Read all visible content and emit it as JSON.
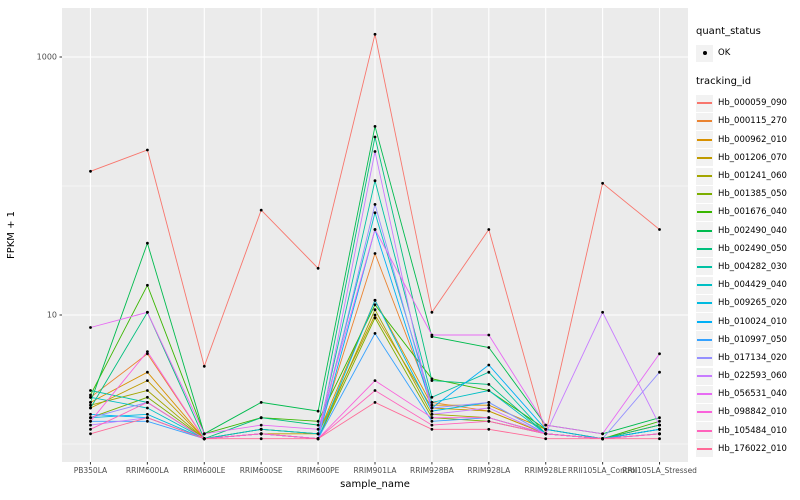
{
  "chart_data": {
    "type": "line",
    "title": "",
    "xlabel": "sample_name",
    "ylabel": "FPKM + 1",
    "yscale": "log10",
    "grid": true,
    "panel_bg": "#EBEBEB",
    "grid_color": "#FFFFFF",
    "point_color": "#000000",
    "y_tick_values": [
      10,
      1000
    ],
    "y_tick_labels": [
      "10",
      "1000"
    ],
    "y_minor_values": [
      1,
      100
    ],
    "ylim": [
      0.72,
      2300
    ],
    "categories": [
      "PB350LA",
      "RRIM600LA",
      "RRIM600LE",
      "RRIM600SE",
      "RRIM600PE",
      "RRIM901LA",
      "RRIM928BA",
      "RRIM928LA",
      "RRIM928LE",
      "RRII105LA_Control",
      "RRII105LA_Stressed"
    ],
    "series": [
      {
        "name": "Hb_000059_090",
        "color": "#F8766D",
        "values": [
          130,
          190,
          4,
          65,
          23,
          1500,
          10.5,
          46,
          1.2,
          105,
          46
        ]
      },
      {
        "name": "Hb_000115_270",
        "color": "#EA8331",
        "values": [
          2.3,
          5,
          1.1,
          1.3,
          1.2,
          30,
          2.1,
          1.8,
          1.2,
          1.1,
          1.4
        ]
      },
      {
        "name": "Hb_000962_010",
        "color": "#D89000",
        "values": [
          2.1,
          3.6,
          1.1,
          1.3,
          1.2,
          13,
          2,
          2,
          1.3,
          1.1,
          1.4
        ]
      },
      {
        "name": "Hb_001206_070",
        "color": "#C09B00",
        "values": [
          1.9,
          3.1,
          1.1,
          1.2,
          1.2,
          10,
          1.9,
          1.8,
          1.2,
          1.1,
          1.3
        ]
      },
      {
        "name": "Hb_001241_060",
        "color": "#A3A500",
        "values": [
          2,
          2.6,
          1.1,
          1.2,
          1.1,
          11,
          1.7,
          1.6,
          1.2,
          1.1,
          1.3
        ]
      },
      {
        "name": "Hb_001385_050",
        "color": "#7CAE00",
        "values": [
          1.6,
          2.3,
          1.1,
          1.2,
          1.1,
          9.5,
          1.6,
          1.5,
          1.2,
          1.1,
          1.2
        ]
      },
      {
        "name": "Hb_001676_040",
        "color": "#39B600",
        "values": [
          2.4,
          17,
          1.2,
          1.6,
          1.5,
          12,
          3.2,
          2.6,
          1.3,
          1.1,
          1.5
        ]
      },
      {
        "name": "Hb_002490_040",
        "color": "#00BB4E",
        "values": [
          2.1,
          36,
          1.2,
          2.1,
          1.8,
          290,
          6.8,
          5.6,
          1.4,
          1.2,
          1.6
        ]
      },
      {
        "name": "Hb_002490_050",
        "color": "#00BF7D",
        "values": [
          1.9,
          10.5,
          1.1,
          1.6,
          1.4,
          240,
          3.1,
          2.9,
          1.2,
          1.1,
          1.4
        ]
      },
      {
        "name": "Hb_004282_030",
        "color": "#00C1A3",
        "values": [
          2.6,
          2.1,
          1.1,
          1.3,
          1.2,
          110,
          2.3,
          3.6,
          1.2,
          1.1,
          1.3
        ]
      },
      {
        "name": "Hb_004429_040",
        "color": "#00BFC4",
        "values": [
          2.3,
          1.9,
          1.1,
          1.3,
          1.2,
          62,
          2.1,
          2.6,
          1.2,
          1.1,
          1.3
        ]
      },
      {
        "name": "Hb_009265_020",
        "color": "#00BAE0",
        "values": [
          1.6,
          1.7,
          1.1,
          1.2,
          1.1,
          13,
          1.8,
          2.1,
          1.2,
          1.1,
          1.2
        ]
      },
      {
        "name": "Hb_010024_010",
        "color": "#00B0F6",
        "values": [
          1.7,
          1.6,
          1.1,
          1.2,
          1.1,
          46,
          1.9,
          4.1,
          1.3,
          1.1,
          1.3
        ]
      },
      {
        "name": "Hb_010997_050",
        "color": "#35A2FF",
        "values": [
          1.5,
          1.5,
          1.1,
          1.2,
          1.1,
          7.2,
          1.5,
          1.6,
          1.2,
          1.1,
          1.2
        ]
      },
      {
        "name": "Hb_017134_020",
        "color": "#9590FF",
        "values": [
          1.6,
          2.1,
          1.1,
          1.2,
          1.1,
          72,
          1.9,
          2.1,
          1.2,
          1.1,
          3.6
        ]
      },
      {
        "name": "Hb_022593_060",
        "color": "#C77CFF",
        "values": [
          1.4,
          1.6,
          1.1,
          1.2,
          1.1,
          185,
          1.7,
          1.9,
          1.2,
          10.5,
          1.4
        ]
      },
      {
        "name": "Hb_056531_040",
        "color": "#E76BF3",
        "values": [
          8,
          10.5,
          1.2,
          1.4,
          1.3,
          46,
          7,
          7,
          1.4,
          1.2,
          5
        ]
      },
      {
        "name": "Hb_098842_010",
        "color": "#FA62DB",
        "values": [
          1.5,
          5.2,
          1.1,
          1.2,
          1.1,
          3.1,
          1.6,
          1.6,
          1.2,
          1.1,
          1.2
        ]
      },
      {
        "name": "Hb_105484_010",
        "color": "#FF62BC",
        "values": [
          1.3,
          2.1,
          1.1,
          1.2,
          1.1,
          2.6,
          1.4,
          1.5,
          1.2,
          1.1,
          1.2
        ]
      },
      {
        "name": "Hb_176022_010",
        "color": "#FF6A98",
        "values": [
          1.2,
          1.6,
          1.1,
          1.1,
          1.1,
          2.1,
          1.3,
          1.3,
          1.1,
          1.1,
          1.1
        ]
      }
    ],
    "legend": {
      "position": "right",
      "quant_status": {
        "title": "quant_status",
        "items": [
          {
            "label": "OK",
            "key": "point"
          }
        ]
      },
      "tracking": {
        "title": "tracking_id"
      }
    }
  }
}
